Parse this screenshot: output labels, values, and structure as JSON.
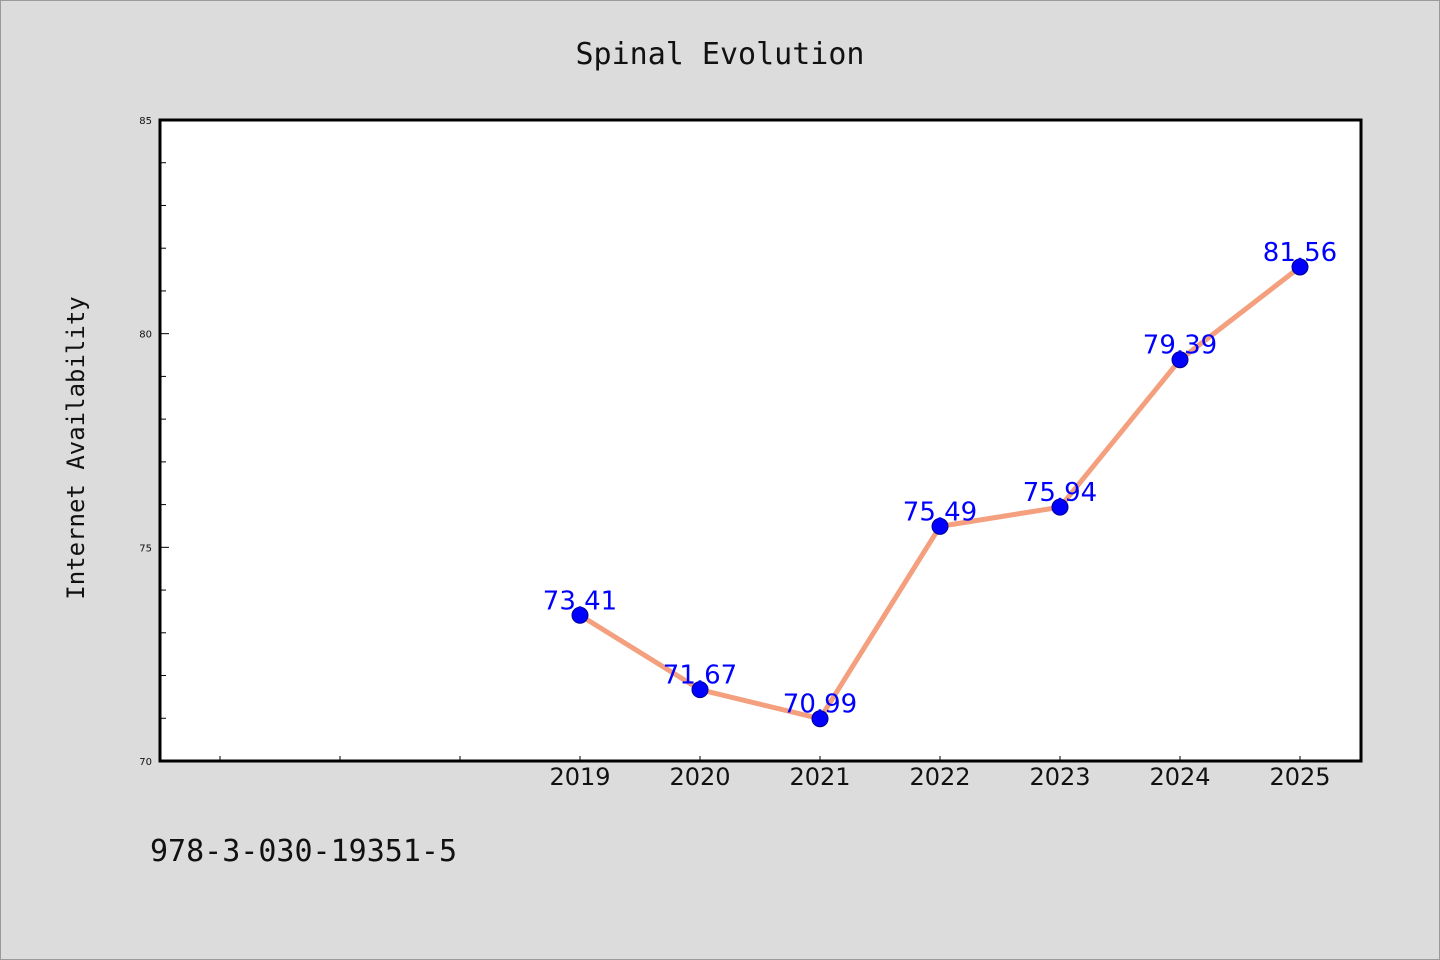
{
  "chart_data": {
    "type": "line",
    "title": "Spinal Evolution",
    "xlabel": "",
    "ylabel": "Internet Availability",
    "categories": [
      "2019",
      "2020",
      "2021",
      "2022",
      "2023",
      "2024",
      "2025"
    ],
    "series": [
      {
        "values": [
          73.41,
          71.67,
          70.99,
          75.49,
          75.94,
          79.39,
          81.56
        ],
        "data_labels": [
          "73.41",
          "71.67",
          "70.99",
          "75.49",
          "75.94",
          "79.39",
          "81.56"
        ]
      }
    ],
    "ylim": [
      70,
      85
    ],
    "yticks": [
      "70",
      "75",
      "80",
      "85"
    ],
    "grid": false,
    "legend": "none",
    "colors": {
      "line": "#f4a07e",
      "marker": "#0000ff",
      "data_label": "#0000ff",
      "axes_frame": "#000000",
      "background": "#dcdcdc",
      "plot_background": "#ffffff"
    }
  },
  "footer": {
    "code": "978-3-030-19351-5"
  }
}
